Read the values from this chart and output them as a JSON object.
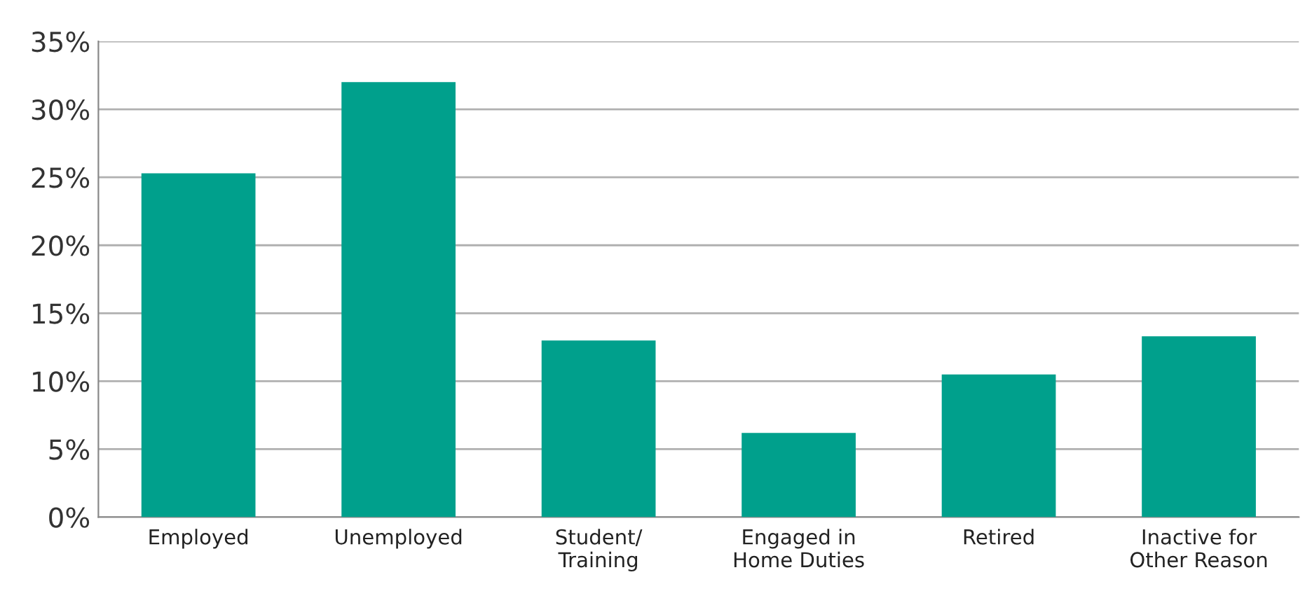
{
  "chart_data": {
    "type": "bar",
    "categories": [
      "Employed",
      "Unemployed",
      "Student/\nTraining",
      "Engaged in\nHome Duties",
      "Retired",
      "Inactive for\nOther Reason"
    ],
    "values": [
      25.3,
      32.0,
      13.0,
      6.2,
      10.5,
      13.3
    ],
    "color": "#00a08c",
    "ylim": [
      0,
      35
    ],
    "yticks": [
      {
        "value": 0,
        "label": "0%"
      },
      {
        "value": 5,
        "label": "5%"
      },
      {
        "value": 10,
        "label": "10%"
      },
      {
        "value": 15,
        "label": "15%"
      },
      {
        "value": 20,
        "label": "20%"
      },
      {
        "value": 25,
        "label": "25%"
      },
      {
        "value": 30,
        "label": "30%"
      },
      {
        "value": 35,
        "label": "35%"
      }
    ],
    "grid": "y",
    "legend": false
  }
}
